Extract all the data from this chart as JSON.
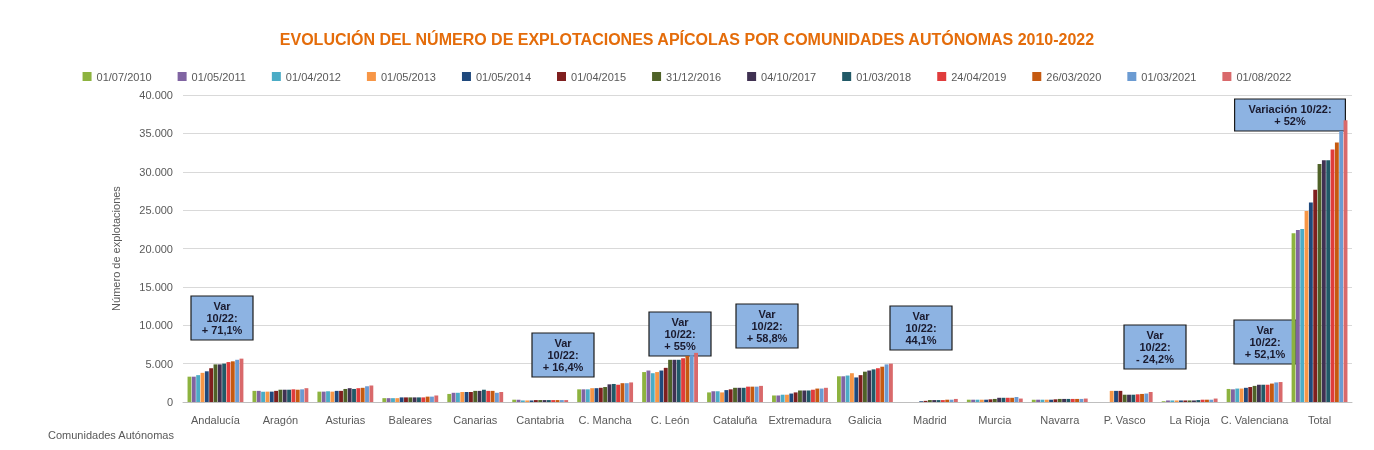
{
  "chart_data": {
    "type": "bar",
    "title": "EVOLUCIÓN DEL NÚMERO DE EXPLOTACIONES APÍCOLAS POR COMUNIDADES AUTÓNOMAS 2010-2022",
    "xlabel": "Comunidades Autónomas",
    "ylabel": "Número de explotaciones",
    "categories": [
      "Andalucía",
      "Aragón",
      "Asturias",
      "Baleares",
      "Canarias",
      "Cantabria",
      "C. Mancha",
      "C. León",
      "Cataluña",
      "Extremadura",
      "Galicia",
      "Madrid",
      "Murcia",
      "Navarra",
      "P. Vasco",
      "La Rioja",
      "C. Valenciana",
      "Total"
    ],
    "series": [
      {
        "name": "01/07/2010",
        "color": "#8db33f",
        "values": [
          3300,
          1450,
          1350,
          500,
          1050,
          300,
          1650,
          3900,
          1250,
          850,
          3350,
          null,
          300,
          300,
          null,
          100,
          1700,
          22000
        ]
      },
      {
        "name": "01/05/2011",
        "color": "#8064a2",
        "values": [
          3300,
          1450,
          1350,
          500,
          1200,
          300,
          1650,
          4100,
          1400,
          850,
          3350,
          null,
          300,
          300,
          null,
          200,
          1650,
          22400
        ]
      },
      {
        "name": "01/04/2012",
        "color": "#4bacc6",
        "values": [
          3500,
          1350,
          1400,
          500,
          1200,
          200,
          1650,
          3750,
          1400,
          950,
          3450,
          null,
          300,
          300,
          null,
          200,
          1750,
          22550
        ]
      },
      {
        "name": "01/05/2013",
        "color": "#f79646",
        "values": [
          3800,
          1350,
          1350,
          500,
          1300,
          200,
          1800,
          3900,
          1250,
          950,
          3750,
          null,
          300,
          300,
          1450,
          200,
          1750,
          24900
        ]
      },
      {
        "name": "01/05/2014",
        "color": "#1f497d",
        "values": [
          4000,
          1350,
          1450,
          600,
          1300,
          200,
          1800,
          4100,
          1550,
          1100,
          3200,
          100,
          300,
          300,
          1450,
          200,
          1850,
          26000
        ]
      },
      {
        "name": "01/04/2015",
        "color": "#7f1f1f",
        "values": [
          4400,
          1450,
          1450,
          600,
          1300,
          250,
          1850,
          4450,
          1650,
          1250,
          3500,
          150,
          350,
          350,
          1450,
          200,
          1950,
          27650
        ]
      },
      {
        "name": "31/12/2016",
        "color": "#4f6228",
        "values": [
          4900,
          1600,
          1700,
          600,
          1450,
          250,
          1950,
          5500,
          1850,
          1500,
          3950,
          250,
          400,
          400,
          950,
          200,
          2100,
          31000
        ]
      },
      {
        "name": "04/10/2017",
        "color": "#403152",
        "values": [
          4900,
          1600,
          1800,
          600,
          1450,
          250,
          2300,
          5500,
          1850,
          1500,
          4100,
          250,
          550,
          400,
          950,
          200,
          2250,
          31500
        ]
      },
      {
        "name": "01/03/2018",
        "color": "#215967",
        "values": [
          5000,
          1600,
          1700,
          600,
          1600,
          250,
          2350,
          5500,
          1850,
          1500,
          4250,
          250,
          550,
          400,
          950,
          250,
          2250,
          31500
        ]
      },
      {
        "name": "24/04/2019",
        "color": "#e03c3c",
        "values": [
          5200,
          1650,
          1800,
          600,
          1450,
          250,
          2250,
          5700,
          2000,
          1600,
          4400,
          250,
          550,
          400,
          1000,
          300,
          2250,
          32900
        ]
      },
      {
        "name": "26/03/2020",
        "color": "#c55a11",
        "values": [
          5300,
          1600,
          1850,
          700,
          1450,
          250,
          2450,
          6000,
          2000,
          1750,
          4600,
          300,
          550,
          400,
          1050,
          300,
          2400,
          33800
        ]
      },
      {
        "name": "01/03/2021",
        "color": "#6b9bd2",
        "values": [
          5500,
          1650,
          2050,
          700,
          1200,
          250,
          2450,
          6100,
          2000,
          1750,
          4900,
          300,
          650,
          400,
          1100,
          300,
          2550,
          35300
        ]
      },
      {
        "name": "01/08/2022",
        "color": "#d9696b",
        "values": [
          5650,
          1800,
          2150,
          850,
          1300,
          250,
          2550,
          6400,
          2100,
          1850,
          5000,
          400,
          450,
          450,
          1300,
          450,
          2600,
          36700
        ]
      }
    ],
    "annotations": [
      "Var\n10/22:\n+ 71,1%",
      "Var\n10/22:\n+ 16,4%",
      "Var\n10/22:\n+ 55%",
      "Var\n10/22:\n+ 58,8%",
      "Var\n10/22:\n44,1%",
      "Var\n10/22:\n- 24,2%",
      "Var\n10/22:\n+ 52,1%",
      "Variación 10/22:\n+ 52%"
    ],
    "ylim": [
      0,
      40000
    ],
    "yticks": [
      0,
      {
        "value": 5000,
        "label": "5.000"
      },
      {
        "value": 10000,
        "label": "10.000"
      },
      {
        "value": 15000,
        "label": "15.000"
      },
      {
        "value": 20000,
        "label": "20.000"
      },
      {
        "value": 25000,
        "label": "25.000"
      },
      {
        "value": 30000,
        "label": "30.000"
      },
      {
        "value": 35000,
        "label": "35.000"
      },
      {
        "value": 40000,
        "label": "40.000"
      }
    ],
    "grid": "y",
    "legend": "top"
  }
}
